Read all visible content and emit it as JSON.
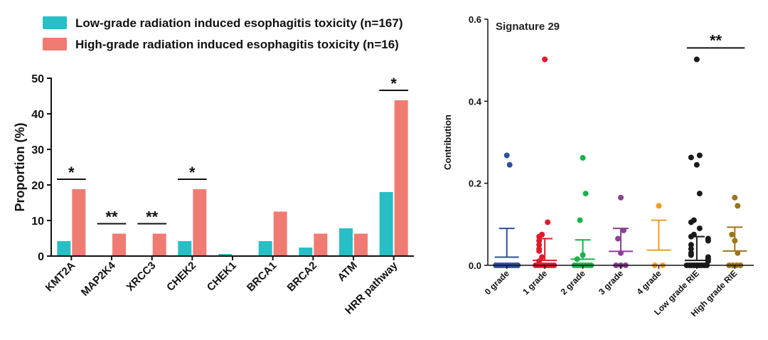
{
  "colors": {
    "low": "#27BFC6",
    "high": "#F07B72",
    "axis": "#111111",
    "scatter": [
      "#2F4F9A",
      "#E3192A",
      "#19B34A",
      "#8E3F97",
      "#F59B21",
      "#1A1A1A",
      "#9E7419"
    ]
  },
  "chart_data": [
    {
      "type": "bar",
      "categories": [
        "KMT2A",
        "MAP2K4",
        "XRCC3",
        "CHEK2",
        "CHEK1",
        "BRCA1",
        "BRCA2",
        "ATM",
        "HRR pathway"
      ],
      "series": [
        {
          "name": "Low-grade radiation induced esophagitis toxicity (n=167)",
          "values": [
            4.2,
            0,
            0,
            4.2,
            0.6,
            4.2,
            2.4,
            7.8,
            18.0
          ]
        },
        {
          "name": "High-grade radiation induced esophagitis toxicity (n=16)",
          "values": [
            18.8,
            6.3,
            6.3,
            18.8,
            0,
            12.5,
            6.3,
            6.3,
            43.8
          ]
        }
      ],
      "ylabel": "Proportion (%)",
      "ylim": [
        0,
        50
      ],
      "yticks": [
        0,
        10,
        20,
        30,
        40,
        50
      ],
      "significance": [
        {
          "from": "KMT2A",
          "to": "KMT2A",
          "label": "*"
        },
        {
          "from": "MAP2K4",
          "to": "MAP2K4",
          "label": "**"
        },
        {
          "from": "XRCC3",
          "to": "XRCC3",
          "label": "**"
        },
        {
          "from": "CHEK2",
          "to": "CHEK2",
          "label": "*"
        },
        {
          "from": "HRR pathway",
          "to": "HRR pathway",
          "label": "*"
        }
      ],
      "legend_position": "top"
    },
    {
      "type": "scatter",
      "title": "Signature 29",
      "ylabel": "Contribution",
      "ylim": [
        0,
        0.6
      ],
      "yticks": [
        "0.0",
        "0.2",
        "0.4",
        "0.6"
      ],
      "categories": [
        "0 grade",
        "1 grade",
        "2 grade",
        "3 grade",
        "4 grade",
        "Low grade RIE",
        "High grade RIE"
      ],
      "groups": [
        {
          "name": "0 grade",
          "mean": 0.02,
          "sd_upper": 0.09,
          "points": [
            0.268,
            0.245,
            0,
            0,
            0,
            0,
            0,
            0,
            0,
            0,
            0,
            0
          ]
        },
        {
          "name": "1 grade",
          "mean": 0.012,
          "sd_upper": 0.065,
          "points": [
            0.502,
            0.105,
            0.075,
            0.07,
            0.06,
            0.05,
            0.04,
            0.035,
            0.02,
            0.01,
            0,
            0,
            0,
            0,
            0,
            0,
            0,
            0
          ]
        },
        {
          "name": "2 grade",
          "mean": 0.015,
          "sd_upper": 0.062,
          "points": [
            0.262,
            0.175,
            0.11,
            0.025,
            0.015,
            0,
            0,
            0,
            0,
            0,
            0,
            0
          ]
        },
        {
          "name": "3 grade",
          "mean": 0.034,
          "sd_upper": 0.09,
          "points": [
            0.165,
            0.085,
            0.065,
            0.03,
            0,
            0,
            0
          ]
        },
        {
          "name": "4 grade",
          "mean": 0.037,
          "sd_upper": 0.11,
          "points": [
            0.145,
            0,
            0
          ]
        },
        {
          "name": "Low grade RIE",
          "mean": 0.012,
          "sd_upper": 0.07,
          "points": [
            0.502,
            0.268,
            0.263,
            0.245,
            0.175,
            0.11,
            0.105,
            0.09,
            0.075,
            0.07,
            0.065,
            0.06,
            0.05,
            0.04,
            0.03,
            0.025,
            0.02,
            0.015,
            0.01,
            0,
            0,
            0,
            0,
            0,
            0,
            0,
            0,
            0
          ]
        },
        {
          "name": "High grade RIE",
          "mean": 0.035,
          "sd_upper": 0.093,
          "points": [
            0.165,
            0.145,
            0.075,
            0.06,
            0.03,
            0,
            0,
            0,
            0
          ]
        }
      ],
      "significance": [
        {
          "from": "Low grade RIE",
          "to": "High grade RIE",
          "label": "**"
        }
      ]
    }
  ]
}
